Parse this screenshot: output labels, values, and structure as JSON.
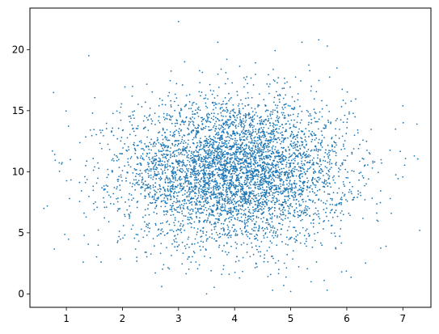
{
  "chart_data": {
    "type": "scatter",
    "title": "",
    "xlabel": "",
    "ylabel": "",
    "xlim": [
      0.35,
      7.5
    ],
    "ylim": [
      -1.1,
      23.4
    ],
    "xticks": [
      1,
      2,
      3,
      4,
      5,
      6,
      7
    ],
    "xtick_labels": [
      "1",
      "2",
      "3",
      "4",
      "5",
      "6",
      "7"
    ],
    "yticks": [
      0,
      5,
      10,
      15,
      20
    ],
    "ytick_labels": [
      "0",
      "5",
      "10",
      "15",
      "20"
    ],
    "grid": false,
    "legend": false,
    "colors": {
      "points": "#1f77b4",
      "axes": "#000000",
      "background": "#ffffff"
    },
    "series": [
      {
        "name": "",
        "distribution": "approximately normal, n ≈ 5000",
        "x_center": 4.0,
        "x_std": 1.0,
        "y_center": 10.0,
        "y_std": 3.0,
        "x_range": [
          0.6,
          7.3
        ],
        "y_range": [
          0.0,
          22.3
        ],
        "outliers": [
          {
            "x": 0.6,
            "y": 7.0
          },
          {
            "x": 0.75,
            "y": 11.7
          },
          {
            "x": 1.4,
            "y": 19.5
          },
          {
            "x": 3.0,
            "y": 22.3
          },
          {
            "x": 3.5,
            "y": 0.0
          },
          {
            "x": 3.7,
            "y": 20.6
          },
          {
            "x": 5.0,
            "y": 0.2
          },
          {
            "x": 5.2,
            "y": 20.6
          },
          {
            "x": 5.5,
            "y": 20.8
          },
          {
            "x": 5.65,
            "y": 0.3
          },
          {
            "x": 6.7,
            "y": 3.9
          },
          {
            "x": 7.0,
            "y": 15.4
          },
          {
            "x": 7.3,
            "y": 5.2
          },
          {
            "x": 7.25,
            "y": 13.9
          },
          {
            "x": 1.3,
            "y": 2.6
          },
          {
            "x": 2.7,
            "y": 0.6
          }
        ]
      }
    ]
  }
}
